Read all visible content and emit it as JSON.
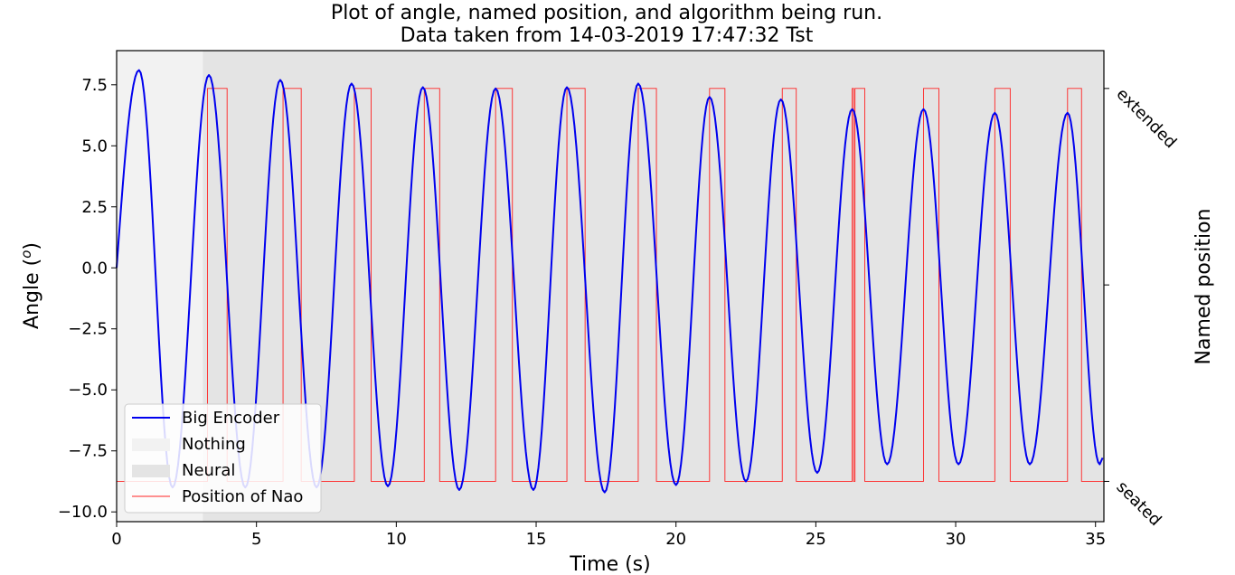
{
  "chart_data": {
    "type": "line",
    "title_line1": "Plot of angle, named position, and algorithm being run.",
    "title_line2": "Data taken from 14-03-2019 17:47:32 Tst",
    "xlabel": "Time (s)",
    "ylabel": "Angle (",
    "ylabel_sup": "o",
    "ylabel_end": ")",
    "y2label": "Named position",
    "xlim": [
      0,
      35.3
    ],
    "ylim": [
      -10.4,
      8.9
    ],
    "xticks": [
      0,
      5,
      10,
      15,
      20,
      25,
      30,
      35
    ],
    "xtick_labels": [
      "0",
      "5",
      "10",
      "15",
      "20",
      "25",
      "30",
      "35"
    ],
    "yticks": [
      7.5,
      5.0,
      2.5,
      0.0,
      -2.5,
      -5.0,
      -7.5,
      -10.0
    ],
    "ytick_labels": [
      "7.5",
      "5.0",
      "2.5",
      "0.0",
      "−2.5",
      "−5.0",
      "−7.5",
      "−10.0"
    ],
    "y2_categories": [
      {
        "label": "extended",
        "value": 7.35
      },
      {
        "label": "seated",
        "value": -8.75
      }
    ],
    "regions": [
      {
        "name": "Nothing",
        "x0": 0,
        "x1": 3.08,
        "color": "#f2f2f2"
      },
      {
        "name": "Neural",
        "x0": 3.08,
        "x1": 35.3,
        "color": "#e4e4e4"
      }
    ],
    "series": [
      {
        "name": "Big Encoder",
        "color": "#0000ee",
        "peaks": [
          [
            0.8,
            8.1
          ],
          [
            3.3,
            7.9
          ],
          [
            5.85,
            7.7
          ],
          [
            8.4,
            7.55
          ],
          [
            10.95,
            7.4
          ],
          [
            13.55,
            7.35
          ],
          [
            16.1,
            7.4
          ],
          [
            18.65,
            7.55
          ],
          [
            21.2,
            7.0
          ],
          [
            23.75,
            6.9
          ],
          [
            26.3,
            6.5
          ],
          [
            28.85,
            6.5
          ],
          [
            31.4,
            6.35
          ],
          [
            34.0,
            6.35
          ]
        ],
        "troughs": [
          [
            2.0,
            -9.0
          ],
          [
            4.6,
            -9.0
          ],
          [
            7.15,
            -9.0
          ],
          [
            9.7,
            -8.95
          ],
          [
            12.25,
            -9.1
          ],
          [
            14.9,
            -9.1
          ],
          [
            17.45,
            -9.2
          ],
          [
            20.0,
            -8.9
          ],
          [
            22.5,
            -8.75
          ],
          [
            25.05,
            -8.4
          ],
          [
            27.55,
            -8.05
          ],
          [
            30.1,
            -8.05
          ],
          [
            32.65,
            -8.05
          ],
          [
            35.15,
            -8.05
          ]
        ]
      },
      {
        "name": "Position of Nao",
        "color": "#ff2222",
        "steps": [
          [
            0,
            -8.75
          ],
          [
            3.25,
            7.35
          ],
          [
            3.95,
            -8.75
          ],
          [
            5.95,
            7.35
          ],
          [
            6.6,
            -8.75
          ],
          [
            8.5,
            7.35
          ],
          [
            9.1,
            -8.75
          ],
          [
            11.0,
            7.35
          ],
          [
            11.55,
            -8.75
          ],
          [
            13.55,
            7.35
          ],
          [
            14.15,
            -8.75
          ],
          [
            16.1,
            7.35
          ],
          [
            16.75,
            -8.75
          ],
          [
            18.65,
            7.35
          ],
          [
            19.3,
            -8.75
          ],
          [
            21.2,
            7.35
          ],
          [
            21.75,
            -8.75
          ],
          [
            23.8,
            7.35
          ],
          [
            24.3,
            -8.75
          ],
          [
            26.3,
            7.35
          ],
          [
            26.35,
            -8.75
          ],
          [
            26.4,
            7.35
          ],
          [
            26.75,
            -8.75
          ],
          [
            28.85,
            7.35
          ],
          [
            29.4,
            -8.75
          ],
          [
            31.4,
            7.35
          ],
          [
            31.95,
            -8.75
          ],
          [
            34.0,
            7.35
          ],
          [
            34.5,
            -8.75
          ],
          [
            35.3,
            -8.75
          ]
        ]
      }
    ],
    "legend": {
      "position": "lower-left",
      "entries": [
        "Big Encoder",
        "Nothing",
        "Neural",
        "Position of Nao"
      ]
    }
  }
}
